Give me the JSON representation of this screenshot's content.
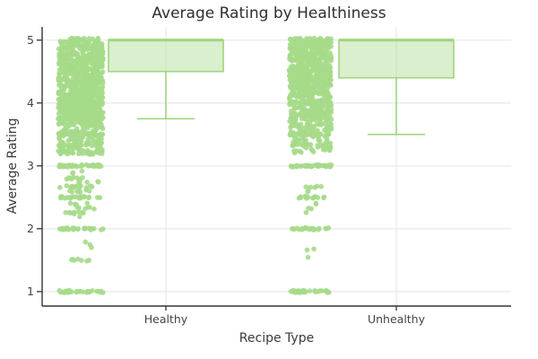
{
  "chart_data": {
    "type": "box",
    "title": "Average Rating by Healthiness",
    "xlabel": "Recipe Type",
    "ylabel": "Average Rating",
    "categories": [
      "Healthy",
      "Unhealthy"
    ],
    "y_ticks": [
      1,
      2,
      3,
      4,
      5
    ],
    "ylim": [
      0.77,
      5.21
    ],
    "grid": "on",
    "legend": "none",
    "colors": {
      "marker": "#a6da89",
      "box_fill": "#a6da89",
      "box_fill_opacity": 0.42,
      "box_line": "#a0d67f",
      "grid_line": "#e9e9e9",
      "axis_line": "#333333",
      "text": "#3b3b3b"
    },
    "series": [
      {
        "name": "Healthy",
        "box": {
          "whisker_low": 3.75,
          "q1": 4.5,
          "median": 5,
          "q3": 5,
          "whisker_high": 5
        },
        "point_bands": [
          {
            "from": 3.95,
            "to": 5.03,
            "n": 640
          },
          {
            "v": 4.0,
            "n": 40
          },
          {
            "from": 3.7,
            "to": 3.95,
            "n": 150
          },
          {
            "v": 3.83,
            "n": 20
          },
          {
            "v": 3.75,
            "n": 20
          },
          {
            "from": 3.42,
            "to": 3.7,
            "n": 90
          },
          {
            "v": 3.67,
            "n": 18
          },
          {
            "v": 3.5,
            "n": 26
          },
          {
            "from": 3.18,
            "to": 3.42,
            "n": 60
          },
          {
            "v": 3.33,
            "n": 16
          },
          {
            "v": 3.25,
            "n": 12
          },
          {
            "v": 3.2,
            "n": 8
          },
          {
            "v": 3.0,
            "n": 40
          },
          {
            "v": 2.9,
            "n": 3,
            "s": 0.5
          },
          {
            "v": 2.8,
            "n": 8,
            "s": 0.75
          },
          {
            "v": 2.75,
            "n": 5,
            "s": 0.6,
            "o": 5
          },
          {
            "v": 2.67,
            "n": 15,
            "s": 0.95
          },
          {
            "v": 2.6,
            "n": 7,
            "s": 0.55,
            "o": -3
          },
          {
            "v": 2.5,
            "n": 24
          },
          {
            "v": 2.4,
            "n": 4,
            "s": 0.5,
            "o": -2
          },
          {
            "v": 2.33,
            "n": 6,
            "s": 0.45,
            "o": 6
          },
          {
            "v": 2.25,
            "n": 8,
            "s": 0.5,
            "o": -5
          },
          {
            "v": 2.2,
            "n": 1,
            "s": 0.05
          },
          {
            "v": 2.0,
            "n": 28
          },
          {
            "v": 1.8,
            "n": 1,
            "s": 0.05,
            "o": 5
          },
          {
            "v": 1.75,
            "n": 1,
            "s": 0.05,
            "o": 9
          },
          {
            "v": 1.7,
            "n": 1,
            "s": 0.05,
            "o": 12
          },
          {
            "v": 1.5,
            "n": 7,
            "s": 0.42
          },
          {
            "v": 1.0,
            "n": 30
          }
        ]
      },
      {
        "name": "Unhealthy",
        "box": {
          "whisker_low": 3.5,
          "q1": 4.4,
          "median": 5,
          "q3": 5,
          "whisker_high": 5
        },
        "point_bands": [
          {
            "from": 4.1,
            "to": 5.03,
            "n": 560
          },
          {
            "v": 4.0,
            "n": 36
          },
          {
            "from": 3.72,
            "to": 4.1,
            "n": 120
          },
          {
            "v": 3.83,
            "n": 16
          },
          {
            "v": 3.75,
            "n": 12
          },
          {
            "from": 3.45,
            "to": 3.72,
            "n": 60
          },
          {
            "v": 3.67,
            "n": 12
          },
          {
            "v": 3.5,
            "n": 20
          },
          {
            "from": 3.2,
            "to": 3.45,
            "n": 35
          },
          {
            "v": 3.33,
            "n": 10
          },
          {
            "v": 3.25,
            "n": 6
          },
          {
            "v": 3.0,
            "n": 36
          },
          {
            "v": 2.67,
            "n": 5,
            "s": 0.55
          },
          {
            "v": 2.6,
            "n": 2,
            "s": 0.25,
            "o": -4
          },
          {
            "v": 2.5,
            "n": 14,
            "s": 0.7
          },
          {
            "v": 2.4,
            "n": 2,
            "s": 0.2,
            "o": 6
          },
          {
            "v": 2.33,
            "n": 2,
            "s": 0.2,
            "o": 2
          },
          {
            "v": 2.25,
            "n": 1,
            "s": 0.05,
            "o": -4
          },
          {
            "v": 2.0,
            "n": 22,
            "s": 0.9
          },
          {
            "v": 1.67,
            "n": 2,
            "s": 0.25
          },
          {
            "v": 1.55,
            "n": 1,
            "s": 0.05,
            "o": -2
          },
          {
            "v": 1.0,
            "n": 28
          }
        ]
      }
    ]
  }
}
